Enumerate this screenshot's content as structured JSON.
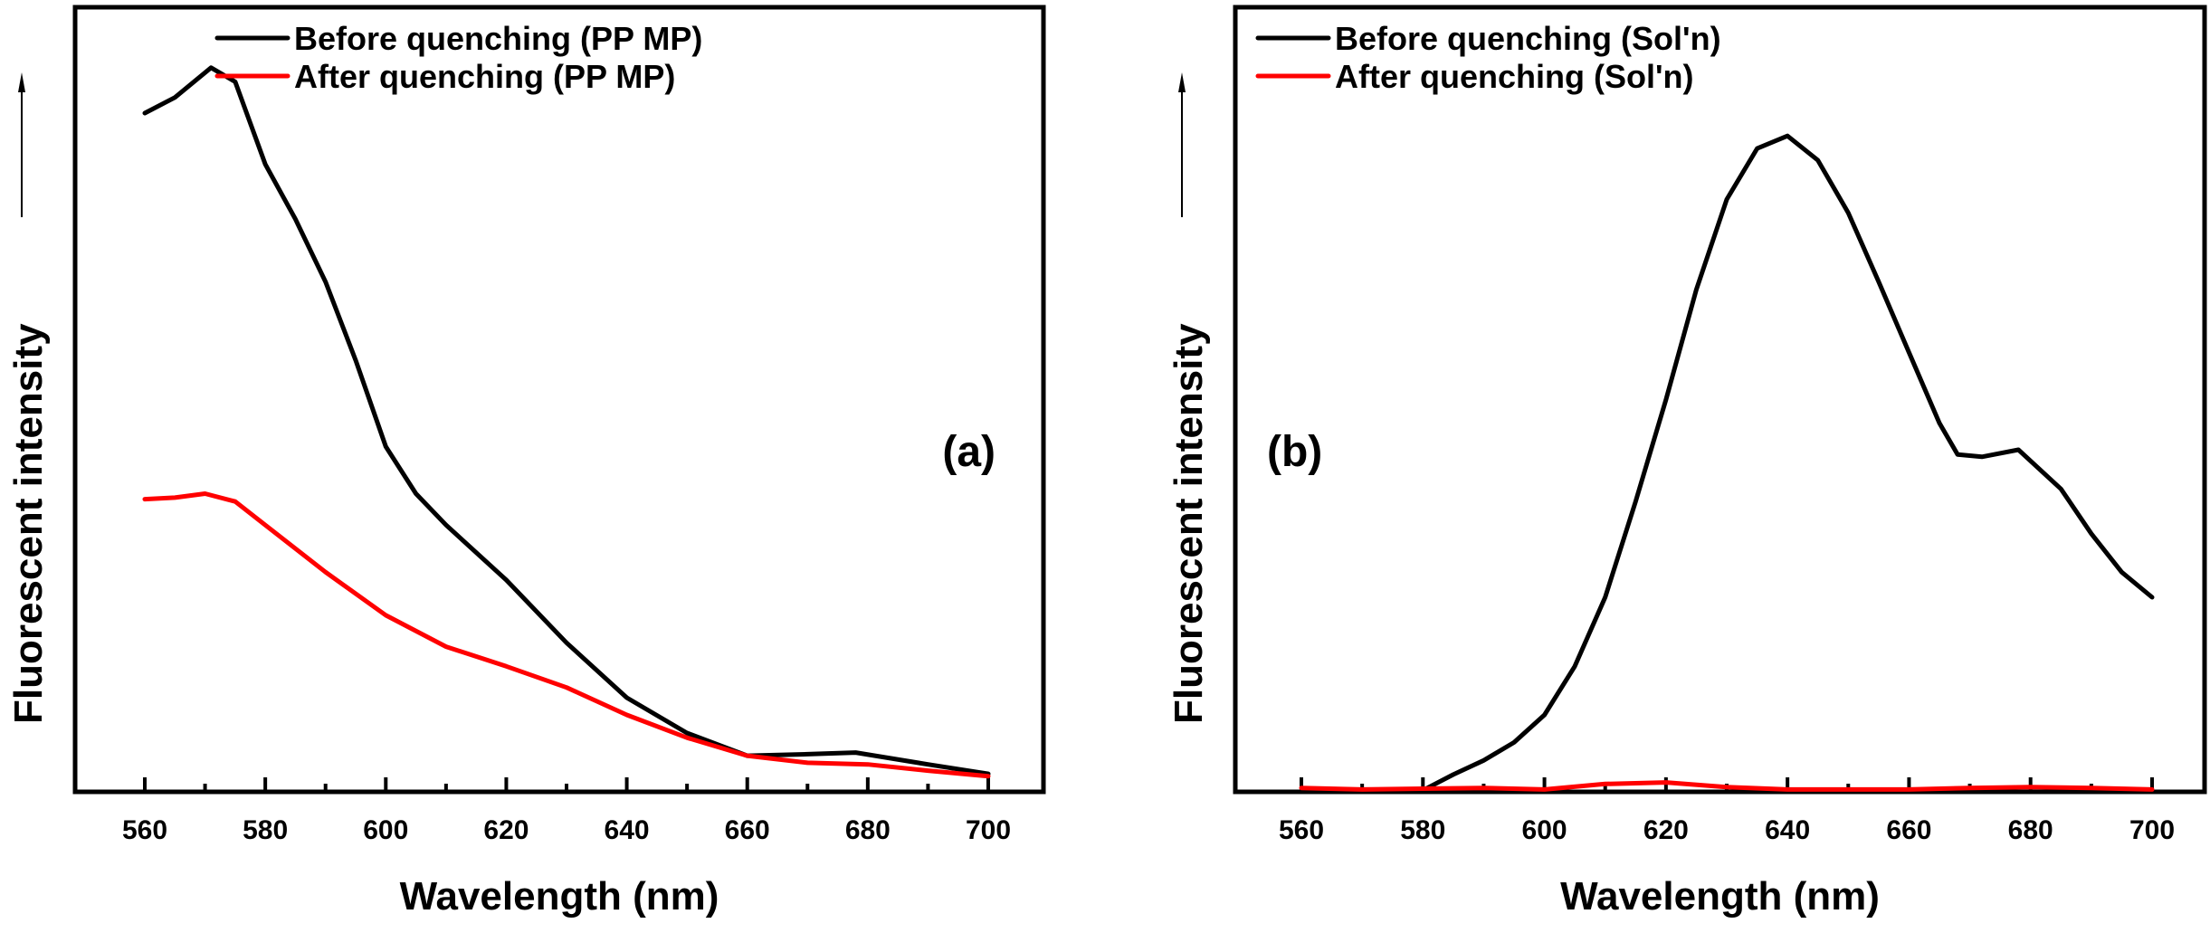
{
  "chart_data": [
    {
      "type": "line",
      "panel_label": "(a)",
      "title": "",
      "xlabel": "Wavelength (nm)",
      "ylabel": "Fluorescent intensity",
      "ylabel_arrow": "up",
      "xlim": [
        560,
        700
      ],
      "ylim": [
        0,
        100
      ],
      "y_units": "a.u. (unlabeled, normalized estimate)",
      "x_ticks": [
        560,
        580,
        600,
        620,
        640,
        660,
        680,
        700
      ],
      "x_minor_ticks": [
        570,
        590,
        610,
        630,
        650,
        670,
        690
      ],
      "y_ticks_shown": false,
      "grid": false,
      "legend_position": "top-right",
      "series": [
        {
          "name": "Before quenching (PP MP)",
          "color": "#000000",
          "x": [
            560,
            565,
            571,
            575,
            580,
            585,
            590,
            595,
            600,
            605,
            610,
            620,
            630,
            640,
            650,
            660,
            670,
            678,
            690,
            700
          ],
          "y": [
            86.5,
            88.5,
            92.3,
            90.5,
            80,
            73,
            65,
            55,
            44,
            38,
            34,
            27,
            19,
            12,
            7.5,
            4.6,
            4.8,
            5.0,
            3.5,
            2.3
          ]
        },
        {
          "name": "After quenching (PP MP)",
          "color": "#ff0000",
          "x": [
            560,
            565,
            570,
            575,
            580,
            590,
            600,
            610,
            620,
            630,
            640,
            650,
            660,
            670,
            680,
            690,
            700
          ],
          "y": [
            37.3,
            37.5,
            38,
            37,
            34,
            28,
            22.5,
            18.5,
            16,
            13.3,
            9.8,
            6.9,
            4.6,
            3.7,
            3.5,
            2.7,
            2.0
          ]
        }
      ]
    },
    {
      "type": "line",
      "panel_label": "(b)",
      "title": "",
      "xlabel": "Wavelength (nm)",
      "ylabel": "Fluorescent intensity",
      "ylabel_arrow": "up",
      "xlim": [
        560,
        700
      ],
      "ylim": [
        0,
        100
      ],
      "y_units": "a.u. (unlabeled, normalized estimate)",
      "x_ticks": [
        560,
        580,
        600,
        620,
        640,
        660,
        680,
        700
      ],
      "x_minor_ticks": [
        570,
        590,
        610,
        630,
        650,
        670,
        690
      ],
      "y_ticks_shown": false,
      "grid": false,
      "legend_position": "top-left",
      "series": [
        {
          "name": "Before quenching (Sol'n)",
          "color": "#000000",
          "x": [
            580,
            585,
            590,
            595,
            600,
            605,
            610,
            615,
            620,
            625,
            630,
            635,
            640,
            645,
            650,
            655,
            660,
            665,
            668,
            672,
            678,
            685,
            690,
            695,
            700
          ],
          "y": [
            0.2,
            2.2,
            4.0,
            6.3,
            9.8,
            16,
            24.8,
            37,
            50,
            64,
            75.5,
            82,
            83.6,
            80.5,
            73.8,
            65,
            56,
            47,
            43,
            42.7,
            43.6,
            38.6,
            32.9,
            28,
            24.8
          ]
        },
        {
          "name": "After quenching (Sol'n)",
          "color": "#ff0000",
          "x": [
            560,
            570,
            580,
            590,
            600,
            610,
            620,
            630,
            640,
            650,
            660,
            670,
            680,
            690,
            700
          ],
          "y": [
            0.5,
            0.3,
            0.4,
            0.5,
            0.3,
            1.0,
            1.2,
            0.6,
            0.3,
            0.3,
            0.3,
            0.5,
            0.6,
            0.5,
            0.3
          ]
        }
      ]
    }
  ]
}
